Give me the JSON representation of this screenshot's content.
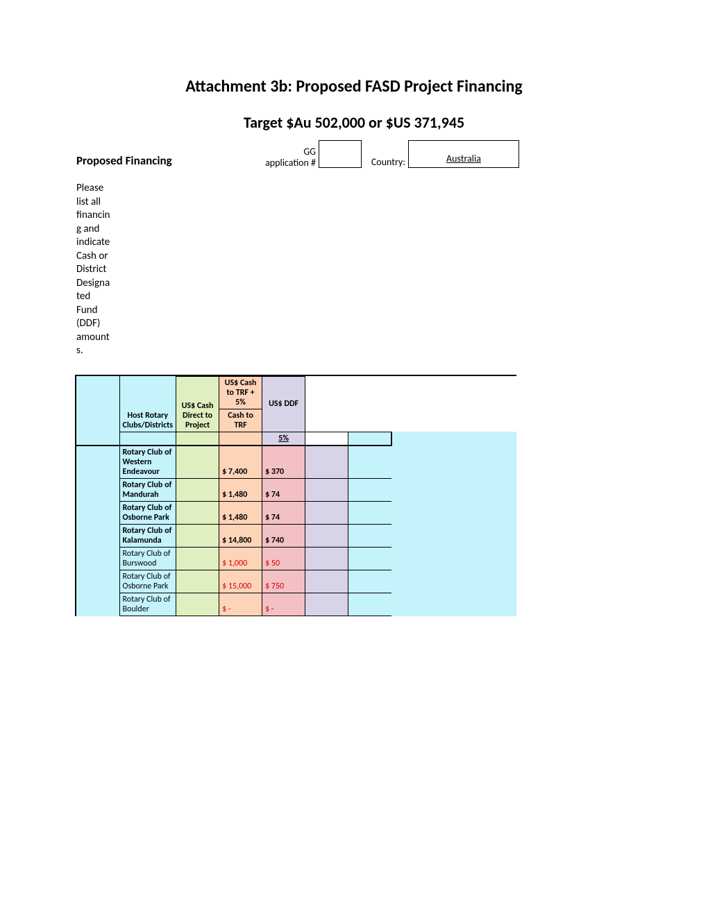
{
  "title": "Attachment 3b: Proposed FASD Project Financing",
  "subtitle": "Target $Au 502,000 or $US 371,945",
  "formLabel": "Proposed Financing",
  "ggLabel": "GG application #",
  "countryLabel": "Country:",
  "countryValue": "Australia",
  "instructions": "Please list all financing and indicate Cash or District Designated Fund (DDF) amounts.",
  "headers": {
    "clubs": "Host Rotary Clubs/Districts",
    "direct": "US$ Cash Direct to Project",
    "trf": "US$ Cash to TRF + 5%",
    "cashtrf": "Cash to TRF",
    "ddf": "US$ DDF",
    "pct": "5%"
  },
  "colors": {
    "bgBlue": "#c4f3fc",
    "bgGreen": "#e0efc0",
    "bgOrange": "#fdd4b8",
    "bgPurple": "#d8d3e7",
    "bgPink": "#f3c0c3",
    "red": "#d10000"
  },
  "rows": [
    {
      "club": "Rotary Club of Western Endeavour",
      "trf": "$ 7,400",
      "ddf": "$ 370",
      "red": false
    },
    {
      "club": "Rotary Club of Mandurah",
      "trf": "$ 1,480",
      "ddf": "$ 74",
      "red": false
    },
    {
      "club": "Rotary Club of Osborne Park",
      "trf": "$ 1,480",
      "ddf": "$ 74",
      "red": false
    },
    {
      "club": "Rotary Club of Kalamunda",
      "trf": "$ 14,800",
      "ddf": "$ 740",
      "red": false
    },
    {
      "club": "Rotary Club of Burswood",
      "trf": "$ 1,000",
      "ddf": "$ 50",
      "red": true
    },
    {
      "club": "Rotary Club of Osborne Park",
      "trf": "$ 15,000",
      "ddf": "$ 750",
      "red": true
    },
    {
      "club": "Rotary Club of Boulder",
      "trf": "$ -",
      "ddf": "$ -",
      "red": true
    }
  ]
}
